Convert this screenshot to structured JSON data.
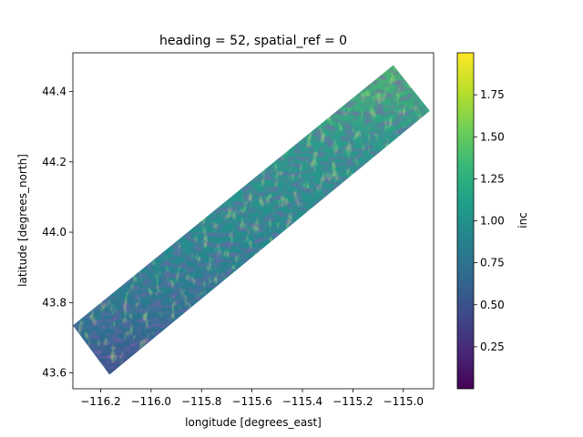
{
  "chart_data": {
    "type": "heatmap",
    "title": "heading = 52, spatial_ref = 0",
    "xlabel": "longitude [degrees_east]",
    "ylabel": "latitude [degrees_north]",
    "xlim": [
      -116.31,
      -114.88
    ],
    "ylim": [
      43.555,
      44.51
    ],
    "x_ticks": [
      {
        "value": -116.2,
        "label": "−116.2"
      },
      {
        "value": -116.0,
        "label": "−116.0"
      },
      {
        "value": -115.8,
        "label": "−115.8"
      },
      {
        "value": -115.6,
        "label": "−115.6"
      },
      {
        "value": -115.4,
        "label": "−115.4"
      },
      {
        "value": -115.2,
        "label": "−115.2"
      },
      {
        "value": -115.0,
        "label": "−115.0"
      }
    ],
    "y_ticks": [
      {
        "value": 43.6,
        "label": "43.6"
      },
      {
        "value": 43.8,
        "label": "43.8"
      },
      {
        "value": 44.0,
        "label": "44.0"
      },
      {
        "value": 44.2,
        "label": "44.2"
      },
      {
        "value": 44.4,
        "label": "44.4"
      }
    ],
    "swath_corners_lonlat": [
      [
        -116.31,
        43.735
      ],
      [
        -115.04,
        44.475
      ],
      [
        -114.895,
        44.345
      ],
      [
        -116.165,
        43.595
      ]
    ],
    "colorbar": {
      "label": "inc",
      "colormap": "viridis",
      "range": [
        0.0,
        2.0
      ],
      "ticks": [
        {
          "value": 0.25,
          "label": "0.25"
        },
        {
          "value": 0.5,
          "label": "0.50"
        },
        {
          "value": 0.75,
          "label": "0.75"
        },
        {
          "value": 1.0,
          "label": "1.00"
        },
        {
          "value": 1.25,
          "label": "1.25"
        },
        {
          "value": 1.5,
          "label": "1.50"
        },
        {
          "value": 1.75,
          "label": "1.75"
        }
      ]
    },
    "grid": false,
    "colors": {
      "viridis_low": "#440154",
      "viridis_mid": "#21918c",
      "viridis_high": "#fde725"
    }
  }
}
